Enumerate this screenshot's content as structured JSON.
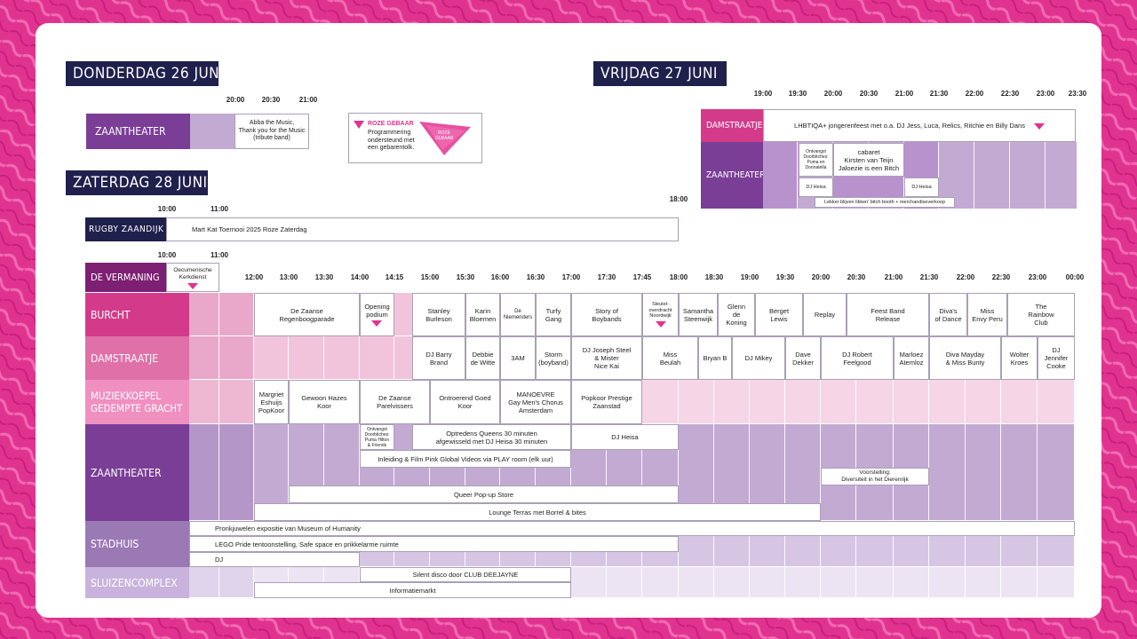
{
  "days": {
    "thursday": "DONDERDAG 26 JUNI",
    "friday": "VRIJDAG 27 JUNI",
    "saturday": "ZATERDAG 28 JUNI"
  },
  "thursday": {
    "times": [
      "20:00",
      "20:30",
      "21:00"
    ],
    "venue": "ZAANTHEATER",
    "event": "Abba the Music,\nThank you for the Music\n(tribute band)"
  },
  "legend": {
    "title": "ROZE GEBAAR",
    "text": "Programmering\nondersteund met\neen gebarentolk.",
    "logo_text": "ROZE\nGEBAAR"
  },
  "friday": {
    "times": [
      "19:00",
      "19:30",
      "20:00",
      "20:30",
      "21:00",
      "21:30",
      "22:00",
      "22:30",
      "23:00",
      "23:30"
    ],
    "venues": [
      "DAMSTRAATJE",
      "ZAANTHEATER"
    ],
    "events": {
      "lhbtiqa": "LHBTIQA+ jongerenfeest met o.a. DJ Jess, Luca, Relics, Ritchie en Billy Dans",
      "ontvangst": "Ontvangst\nDoorbitches:\nPuma en\nDonnatella",
      "cabaret": "cabaret\nKirsten van Teijn\nJaloezie is een Bitch",
      "heisa1": "DJ Heisa",
      "heisa2": "DJ Heisa",
      "lekker": "Lekker blijven likken' bitch booth + merchandiseverkoop"
    }
  },
  "rugby": {
    "times": [
      "10:00",
      "11:00",
      "18:00"
    ],
    "venue": "RUGBY ZAANDIJK",
    "event": "Mart Kat Toernooi 2025 Roze Zaterdag"
  },
  "saturday": {
    "top_times": [
      "10:00",
      "11:00"
    ],
    "times": [
      "12:00",
      "13:00",
      "13:30",
      "14:00",
      "14:15",
      "15:00",
      "15:30",
      "16:00",
      "16:30",
      "17:00",
      "17:30",
      "17:45",
      "18:00",
      "18:30",
      "19:00",
      "19:30",
      "20:00",
      "20:30",
      "21:00",
      "21:30",
      "22:00",
      "22:30",
      "23:00",
      "00:00"
    ],
    "venues": {
      "vermaning": "DE VERMANING",
      "burcht": "BURCHT",
      "damstraatje": "DAMSTRAATJE",
      "muziekkoepel": "MUZIEKKOEPEL\nGEDEMPTE GRACHT",
      "zaantheater": "ZAANTHEATER",
      "stadhuis": "STADHUIS",
      "sluizen": "SLUIZENCOMPLEX"
    },
    "vermaning_event": "Oecumenische\nKerkdienst",
    "burcht": [
      "De Zaanse\nRegenboogparade",
      "Opening\npodium",
      "Stanley\nBurleson",
      "Karin\nBloemen",
      "De\nNiemenders",
      "Turfy\nGang",
      "Story of\nBoybands",
      "Sleutel-\noverdracht\nNoordwijk",
      "Samantha\nSteenwijk",
      "Glenn\nde\nKoning",
      "Berget\nLewis",
      "Replay",
      "Feest Band\nRelease",
      "Diva's\nof Dance",
      "Miss\nEnvy Peru",
      "The\nRainbow\nClub"
    ],
    "damstraatje": [
      "DJ Barry\nBrand",
      "Debbie\nde Witte",
      "3AM",
      "Storm\n(boyband)",
      "DJ Joseph Steel\n& Mister\nNice Kai",
      "Miss\nBeulah",
      "Bryan B",
      "DJ Mikey",
      "Dave\nDekker",
      "DJ Robert\nFeelgood",
      "Marloez\nAtemloz",
      "Diva Mayday\n& Miss Bunty",
      "Wolter\nKroes",
      "DJ\nJennifer\nCooke"
    ],
    "muziekkoepel": [
      "Margriet\nEshuijs\nPopKoor",
      "Gewoon Hazes\nKoor",
      "De Zaanse\nParelvissers",
      "Ontroerend Goed\nKoor",
      "MANOEVRE\nGay Men's Chorus\nAmsterdam",
      "Popkoor Prestige\nZaanstad"
    ],
    "zaantheater": {
      "ontvangst": "Ontvangst\nDoorbitches:\nPuma Hilton\n& Friends",
      "queens": "Optredens Queens 30 minuten\nafgewisseld met DJ Heisa 30 minuten",
      "heisa": "DJ Heisa",
      "inleiding": "Inleiding & Film Pink Global Videos via PLAY room (elk uur)",
      "voorstelling": "Voorstelling:\nDiversiteit in het Dierenrijk",
      "popup": "Queer Pop-up Store",
      "lounge": "Lounge Terras met Borrel & bites"
    },
    "stadhuis": {
      "pronk": "Pronkjuwelen expositie van Museum of Humanity",
      "lego": "LEGO Pride tentoonstelling, Safe space en prikkelarme ruimte",
      "dj": "DJ"
    },
    "sluizen": {
      "silent": "Silent disco door CLUB DEEJAYNE",
      "info": "Informatiemarkt"
    }
  },
  "colors": {
    "magenta": "#e0338f",
    "navy": "#20204d",
    "purple_dark": "#7a3e96",
    "purple_mid": "#9b79b4",
    "purple_light": "#c3aad3",
    "pink_dark": "#d43a8a",
    "pink_mid": "#e070a8",
    "pink_light": "#f0cbe0"
  }
}
